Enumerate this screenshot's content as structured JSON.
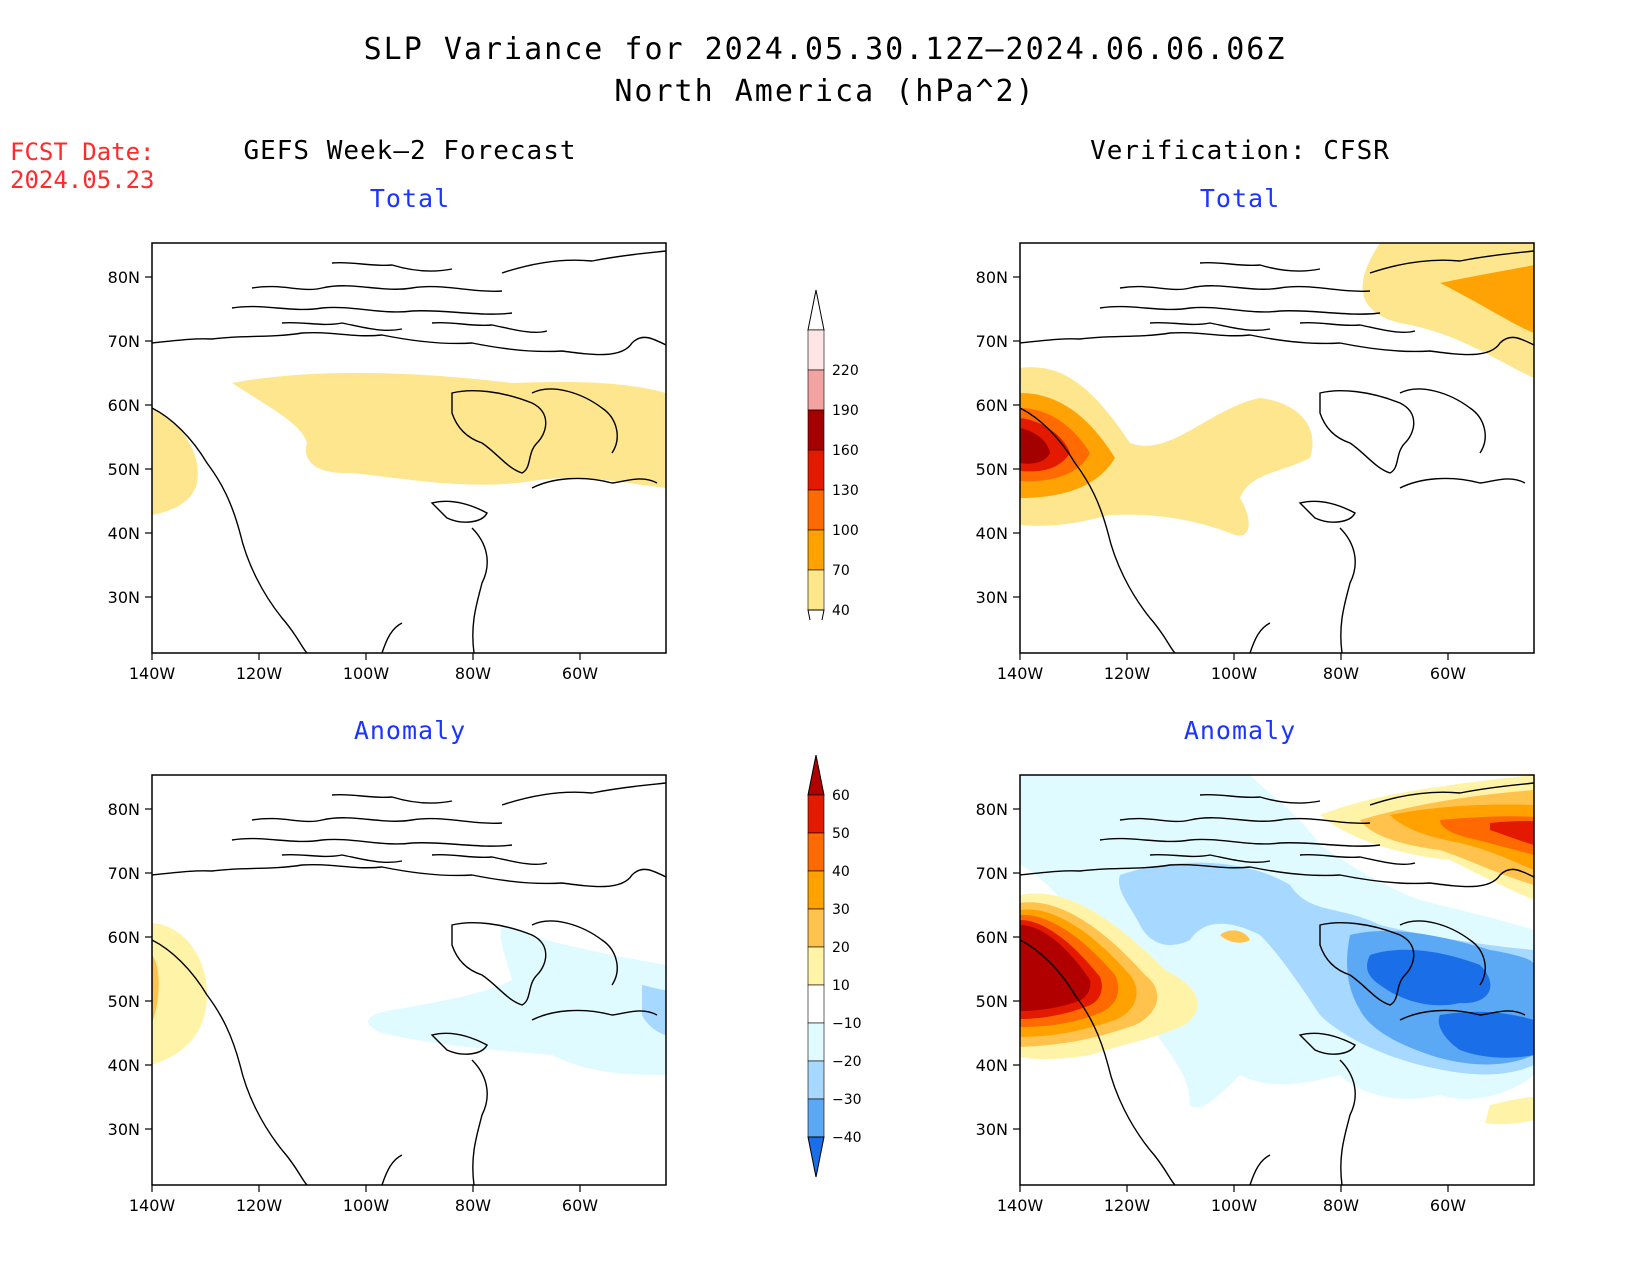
{
  "title": {
    "line1": "SLP Variance for 2024.05.30.12Z–2024.06.06.06Z",
    "line2": "North America (hPa^2)"
  },
  "fcst": {
    "label": "FCST Date:",
    "date": "2024.05.23"
  },
  "columns": {
    "left": "GEFS Week–2 Forecast",
    "right": "Verification: CFSR"
  },
  "panels": {
    "top_left_title": "Total",
    "top_right_title": "Total",
    "bottom_left_title": "Anomaly",
    "bottom_right_title": "Anomaly"
  },
  "axes": {
    "lat_labels": [
      "80N",
      "70N",
      "60N",
      "50N",
      "40N",
      "30N"
    ],
    "lon_labels": [
      "140W",
      "120W",
      "100W",
      "80W",
      "60W"
    ]
  },
  "colorbars": {
    "total": {
      "levels": [
        "40",
        "70",
        "100",
        "130",
        "160",
        "190",
        "220"
      ],
      "colors": [
        "#fee68b",
        "#ffa200",
        "#ff6a00",
        "#e31a00",
        "#a50000",
        "#f4a3a3",
        "#fde5e5"
      ]
    },
    "anomaly": {
      "levels": [
        "60",
        "50",
        "40",
        "30",
        "20",
        "10",
        "−10",
        "−20",
        "−30",
        "−40"
      ],
      "colors_top_to_bottom": [
        "#b00000",
        "#e31a00",
        "#ff6a00",
        "#ffa200",
        "#ffc34d",
        "#fff3a6",
        "#ffffff",
        "#e0fbff",
        "#a7d8ff",
        "#5ba8f5",
        "#1a6fe8"
      ]
    }
  },
  "map_colors": {
    "c40": "#fde68e",
    "c70": "#ffa305",
    "c100": "#ff6b00",
    "c130": "#e31a00",
    "c160": "#a50000",
    "a10": "#fff3a8",
    "a20": "#ffc34d",
    "a30": "#ffa200",
    "a40": "#ff6a00",
    "a50": "#e31a00",
    "a60": "#b00000",
    "n10": "#e0fbff",
    "n20": "#a7d8ff",
    "n30": "#5ba8f5",
    "n40": "#1a6fe8"
  }
}
